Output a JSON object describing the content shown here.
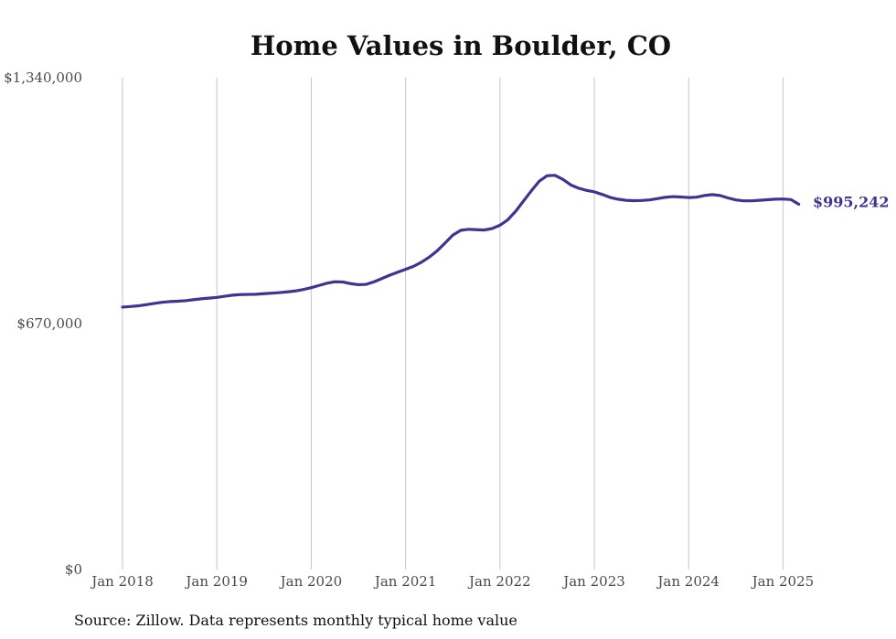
{
  "chart_data": {
    "type": "line",
    "title": "Home Values in Boulder, CO",
    "xlabel": "",
    "ylabel": "",
    "ylim": [
      0,
      1340000
    ],
    "grid": "vertical",
    "y_ticks": [
      {
        "value": 0,
        "label": "$0"
      },
      {
        "value": 670000,
        "label": "$670,000"
      },
      {
        "value": 1340000,
        "label": "$1,340,000"
      }
    ],
    "x_ticks": [
      {
        "value": "2018-01",
        "label": "Jan 2018"
      },
      {
        "value": "2019-01",
        "label": "Jan 2019"
      },
      {
        "value": "2020-01",
        "label": "Jan 2020"
      },
      {
        "value": "2021-01",
        "label": "Jan 2021"
      },
      {
        "value": "2022-01",
        "label": "Jan 2022"
      },
      {
        "value": "2023-01",
        "label": "Jan 2023"
      },
      {
        "value": "2024-01",
        "label": "Jan 2024"
      },
      {
        "value": "2025-01",
        "label": "Jan 2025"
      }
    ],
    "x": [
      "2018-01",
      "2018-02",
      "2018-03",
      "2018-04",
      "2018-05",
      "2018-06",
      "2018-07",
      "2018-08",
      "2018-09",
      "2018-10",
      "2018-11",
      "2018-12",
      "2019-01",
      "2019-02",
      "2019-03",
      "2019-04",
      "2019-05",
      "2019-06",
      "2019-07",
      "2019-08",
      "2019-09",
      "2019-10",
      "2019-11",
      "2019-12",
      "2020-01",
      "2020-02",
      "2020-03",
      "2020-04",
      "2020-05",
      "2020-06",
      "2020-07",
      "2020-08",
      "2020-09",
      "2020-10",
      "2020-11",
      "2020-12",
      "2021-01",
      "2021-02",
      "2021-03",
      "2021-04",
      "2021-05",
      "2021-06",
      "2021-07",
      "2021-08",
      "2021-09",
      "2021-10",
      "2021-11",
      "2021-12",
      "2022-01",
      "2022-02",
      "2022-03",
      "2022-04",
      "2022-05",
      "2022-06",
      "2022-07",
      "2022-08",
      "2022-09",
      "2022-10",
      "2022-11",
      "2022-12",
      "2023-01",
      "2023-02",
      "2023-03",
      "2023-04",
      "2023-05",
      "2023-06",
      "2023-07",
      "2023-08",
      "2023-09",
      "2023-10",
      "2023-11",
      "2023-12",
      "2024-01",
      "2024-02",
      "2024-03",
      "2024-04",
      "2024-05",
      "2024-06",
      "2024-07",
      "2024-08",
      "2024-09",
      "2024-10",
      "2024-11",
      "2024-12",
      "2025-01",
      "2025-02",
      "2025-03"
    ],
    "series": [
      {
        "color": "#3d3591",
        "values": [
          715000,
          716500,
          718500,
          721500,
          725000,
          728000,
          730000,
          731000,
          732500,
          735000,
          737500,
          739500,
          741500,
          744500,
          747500,
          749000,
          749500,
          750000,
          751500,
          753000,
          754500,
          756500,
          759000,
          763000,
          768000,
          774000,
          780000,
          784000,
          783500,
          779000,
          776000,
          777000,
          784000,
          793000,
          802000,
          810000,
          818000,
          826000,
          837000,
          851000,
          868000,
          889000,
          911000,
          924000,
          927000,
          926000,
          925000,
          929000,
          938000,
          953000,
          976000,
          1004000,
          1032000,
          1058000,
          1073000,
          1074000,
          1063000,
          1048000,
          1039000,
          1033000,
          1029000,
          1022000,
          1014000,
          1009000,
          1006000,
          1005000,
          1005500,
          1007000,
          1010500,
          1014000,
          1016000,
          1015000,
          1013500,
          1014500,
          1019000,
          1021500,
          1019000,
          1012500,
          1007000,
          1004500,
          1004500,
          1006000,
          1007500,
          1009000,
          1009500,
          1008000,
          995242
        ]
      }
    ],
    "end_label": "$995,242",
    "source": "Source: Zillow. Data represents monthly typical home value"
  }
}
